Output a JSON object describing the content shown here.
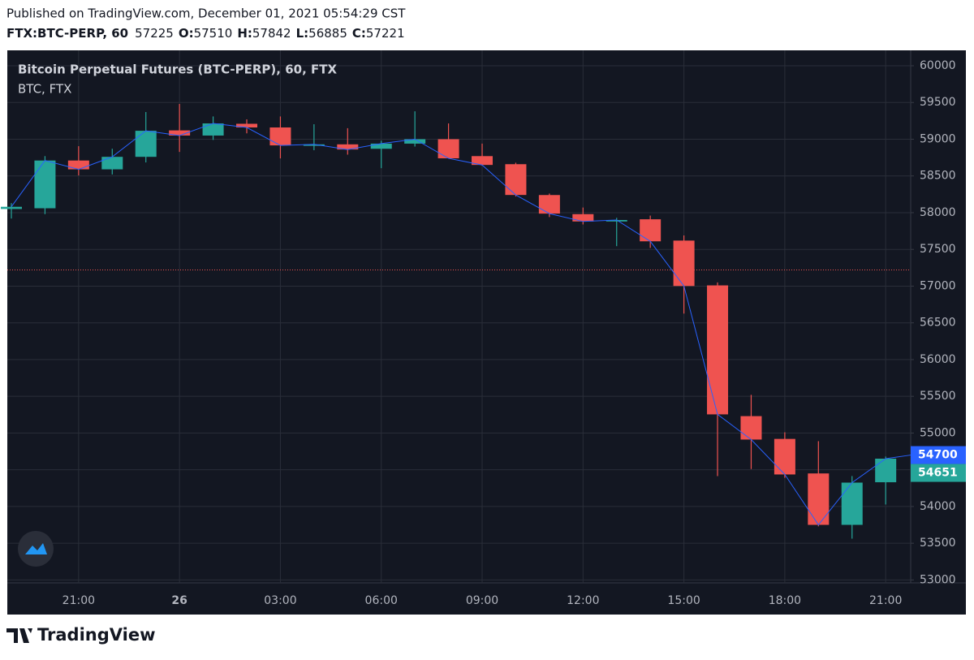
{
  "header": {
    "published": "Published on TradingView.com, December 01, 2021 05:54:29 CST",
    "symbol": "FTX:BTC-PERP, 60",
    "last": 57225,
    "ohlc": [
      {
        "label": "O:",
        "value": 57510
      },
      {
        "label": "H:",
        "value": 57842
      },
      {
        "label": "L:",
        "value": 56885
      },
      {
        "label": "C:",
        "value": 57221
      }
    ]
  },
  "chart_data": {
    "type": "candlestick",
    "title": "Bitcoin Perpetual Futures (BTC-PERP), 60, FTX",
    "subtitle": "BTC, FTX",
    "categories": [
      null,
      null,
      "21:00",
      null,
      null,
      "26",
      null,
      null,
      "03:00",
      null,
      null,
      "06:00",
      null,
      null,
      "09:00",
      null,
      null,
      "12:00",
      null,
      null,
      "15:00",
      null,
      null,
      "18:00",
      null,
      null,
      "21:00"
    ],
    "open": [
      58050,
      58060,
      58710,
      58590,
      58760,
      59120,
      59050,
      59210,
      59160,
      58910,
      58930,
      58870,
      58940,
      59000,
      58770,
      58660,
      58240,
      57980,
      57880,
      57910,
      57620,
      57010,
      55230,
      54920,
      54450,
      53750,
      54330
    ],
    "high": [
      58130,
      58770,
      58905,
      58870,
      59370,
      59480,
      59310,
      59270,
      59310,
      59204,
      59150,
      58980,
      59380,
      59215,
      58940,
      58680,
      58260,
      58070,
      57930,
      57960,
      57690,
      57050,
      55520,
      55010,
      54889,
      54414,
      54680
    ],
    "low": [
      57920,
      57980,
      58507,
      58520,
      58684,
      58827,
      58990,
      59080,
      58739,
      58850,
      58790,
      58606,
      58900,
      58740,
      58640,
      58220,
      57940,
      57840,
      57544,
      57520,
      56626,
      54414,
      54510,
      54390,
      53730,
      53562,
      54027
    ],
    "close": [
      58080,
      58710,
      58590,
      58760,
      59115,
      59050,
      59215,
      59160,
      58916,
      58930,
      58860,
      58940,
      59000,
      58740,
      58650,
      58241,
      57987,
      57880,
      57900,
      57610,
      57002,
      55254,
      54911,
      54436,
      53750,
      54325,
      54651
    ],
    "up_color": "#26a69a",
    "down_color": "#ef5350",
    "line_color": "#2962ff",
    "ylim": [
      52960,
      60210
    ],
    "yticks": [
      53000,
      53500,
      54000,
      54500,
      55000,
      55500,
      56000,
      56500,
      57000,
      57500,
      58000,
      58500,
      59000,
      59500,
      60000
    ],
    "grid": true,
    "hline": {
      "value": 57221,
      "color": "#ef5350"
    },
    "price_labels": [
      {
        "value": 54700,
        "color": "#2962ff"
      },
      {
        "value": 54651,
        "color": "#26a69a"
      }
    ]
  },
  "footer": {
    "brand": "TradingView"
  }
}
